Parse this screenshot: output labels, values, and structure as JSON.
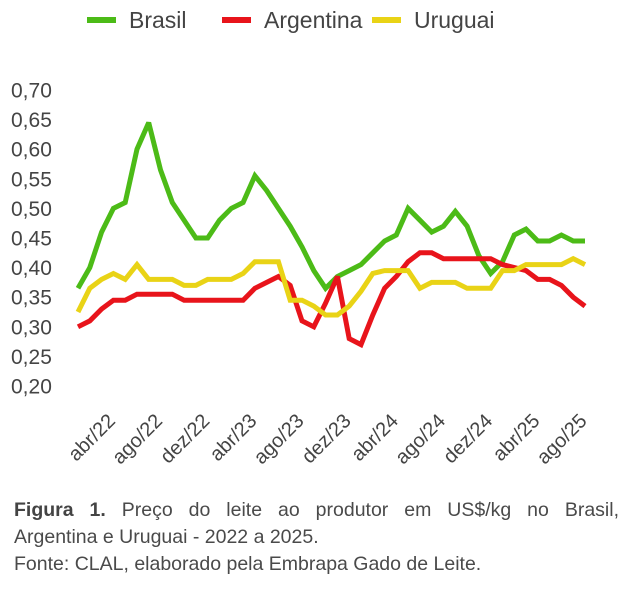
{
  "chart_data": {
    "type": "line",
    "title": "",
    "xlabel": "",
    "ylabel": "",
    "ylim": [
      0.2,
      0.7
    ],
    "yticks": [
      "0,70",
      "0,65",
      "0,60",
      "0,55",
      "0,50",
      "0,45",
      "0,40",
      "0,35",
      "0,30",
      "0,25",
      "0,20"
    ],
    "ytick_values": [
      0.7,
      0.65,
      0.6,
      0.55,
      0.5,
      0.45,
      0.4,
      0.35,
      0.3,
      0.25,
      0.2
    ],
    "grid": false,
    "legend_position": "top-center",
    "x": [
      "jan/22",
      "fev/22",
      "mar/22",
      "abr/22",
      "mai/22",
      "jun/22",
      "jul/22",
      "ago/22",
      "set/22",
      "out/22",
      "nov/22",
      "dez/22",
      "jan/23",
      "fev/23",
      "mar/23",
      "abr/23",
      "mai/23",
      "jun/23",
      "jul/23",
      "ago/23",
      "set/23",
      "out/23",
      "nov/23",
      "dez/23",
      "jan/24",
      "fev/24",
      "mar/24",
      "abr/24",
      "mai/24",
      "jun/24",
      "jul/24",
      "ago/24",
      "set/24",
      "out/24",
      "nov/24",
      "dez/24",
      "jan/25",
      "fev/25",
      "mar/25",
      "abr/25",
      "mai/25",
      "jun/25",
      "jul/25",
      "ago/25"
    ],
    "xtick_labels": [
      {
        "index": 3,
        "label": "abr/22"
      },
      {
        "index": 7,
        "label": "ago/22"
      },
      {
        "index": 11,
        "label": "dez/22"
      },
      {
        "index": 15,
        "label": "abr/23"
      },
      {
        "index": 19,
        "label": "ago/23"
      },
      {
        "index": 23,
        "label": "dez/23"
      },
      {
        "index": 27,
        "label": "abr/24"
      },
      {
        "index": 31,
        "label": "ago/24"
      },
      {
        "index": 35,
        "label": "dez/24"
      },
      {
        "index": 39,
        "label": "abr/25"
      },
      {
        "index": 43,
        "label": "ago/25"
      }
    ],
    "series": [
      {
        "name": "Brasil",
        "color": "#4cbb17",
        "values": [
          0.365,
          0.4,
          0.46,
          0.5,
          0.51,
          0.6,
          0.645,
          0.565,
          0.51,
          0.48,
          0.45,
          0.45,
          0.48,
          0.5,
          0.51,
          0.555,
          0.53,
          0.5,
          0.47,
          0.435,
          0.395,
          0.365,
          0.385,
          0.395,
          0.405,
          0.425,
          0.445,
          0.455,
          0.5,
          0.48,
          0.46,
          0.47,
          0.495,
          0.47,
          0.42,
          0.39,
          0.41,
          0.455,
          0.465,
          0.445,
          0.445,
          0.455,
          0.445,
          0.445
        ]
      },
      {
        "name": "Argentina",
        "color": "#e8141b",
        "values": [
          0.3,
          0.31,
          0.33,
          0.345,
          0.345,
          0.355,
          0.355,
          0.355,
          0.355,
          0.345,
          0.345,
          0.345,
          0.345,
          0.345,
          0.345,
          0.365,
          0.375,
          0.385,
          0.37,
          0.31,
          0.3,
          0.34,
          0.385,
          0.28,
          0.27,
          0.32,
          0.365,
          0.385,
          0.41,
          0.425,
          0.425,
          0.415,
          0.415,
          0.415,
          0.415,
          0.415,
          0.405,
          0.4,
          0.395,
          0.38,
          0.38,
          0.37,
          0.35,
          0.335
        ]
      },
      {
        "name": "Uruguai",
        "color": "#e9d316",
        "values": [
          0.325,
          0.365,
          0.38,
          0.39,
          0.38,
          0.405,
          0.38,
          0.38,
          0.38,
          0.37,
          0.37,
          0.38,
          0.38,
          0.38,
          0.39,
          0.41,
          0.41,
          0.41,
          0.345,
          0.345,
          0.335,
          0.32,
          0.32,
          0.335,
          0.36,
          0.39,
          0.395,
          0.395,
          0.395,
          0.365,
          0.375,
          0.375,
          0.375,
          0.365,
          0.365,
          0.365,
          0.395,
          0.395,
          0.405,
          0.405,
          0.405,
          0.405,
          0.415,
          0.405
        ]
      }
    ]
  },
  "caption": {
    "figure_label": "Figura 1.",
    "title_line1": "Preço do leite ao produtor em US$/kg no Brasil,",
    "title_line2": "Argentina e Uruguai - 2022 a 2025.",
    "source": "Fonte: CLAL, elaborado pela Embrapa Gado de Leite."
  }
}
